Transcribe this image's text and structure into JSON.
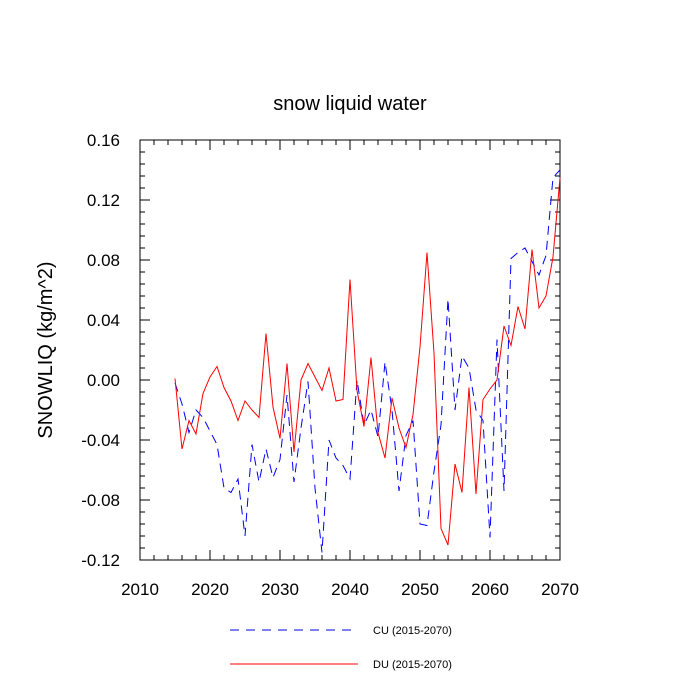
{
  "chart_data": {
    "type": "line",
    "title": "snow liquid water",
    "xlabel": "",
    "ylabel": "SNOWLIQ  (kg/m^2)",
    "xlim": [
      2010,
      2070
    ],
    "ylim": [
      -0.12,
      0.16
    ],
    "x_ticks": [
      2010,
      2020,
      2030,
      2040,
      2050,
      2060,
      2070
    ],
    "y_ticks": [
      -0.12,
      -0.08,
      -0.04,
      0.0,
      0.04,
      0.08,
      0.12,
      0.16
    ],
    "y_tick_labels": [
      "-0.12",
      "-0.08",
      "-0.04",
      "0.00",
      "0.04",
      "0.08",
      "0.12",
      "0.16"
    ],
    "x": [
      2015,
      2016,
      2017,
      2018,
      2019,
      2020,
      2021,
      2022,
      2023,
      2024,
      2025,
      2026,
      2027,
      2028,
      2029,
      2030,
      2031,
      2032,
      2033,
      2034,
      2035,
      2036,
      2037,
      2038,
      2039,
      2040,
      2041,
      2042,
      2043,
      2044,
      2045,
      2046,
      2047,
      2048,
      2049,
      2050,
      2051,
      2052,
      2053,
      2054,
      2055,
      2056,
      2057,
      2058,
      2059,
      2060,
      2061,
      2062,
      2063,
      2064,
      2065,
      2066,
      2067,
      2068,
      2069,
      2070
    ],
    "series": [
      {
        "name": "CU (2015-2070)",
        "color": "#0000ff",
        "style": "dashed",
        "values": [
          -0.002,
          -0.016,
          -0.035,
          -0.02,
          -0.025,
          -0.034,
          -0.043,
          -0.072,
          -0.075,
          -0.066,
          -0.104,
          -0.043,
          -0.068,
          -0.046,
          -0.065,
          -0.053,
          -0.01,
          -0.068,
          -0.032,
          -0.001,
          -0.072,
          -0.115,
          -0.04,
          -0.052,
          -0.057,
          -0.066,
          0.0,
          -0.03,
          -0.02,
          -0.038,
          0.012,
          -0.02,
          -0.074,
          -0.037,
          -0.027,
          -0.096,
          -0.097,
          -0.061,
          -0.03,
          0.054,
          -0.02,
          0.016,
          0.008,
          -0.02,
          -0.027,
          -0.105,
          0.027,
          -0.074,
          0.081,
          0.085,
          0.088,
          0.079,
          0.07,
          0.083,
          0.135,
          0.14
        ]
      },
      {
        "name": "DU (2015-2070)",
        "color": "#ff0000",
        "style": "solid",
        "values": [
          0.001,
          -0.046,
          -0.027,
          -0.036,
          -0.009,
          0.002,
          0.009,
          -0.005,
          -0.014,
          -0.027,
          -0.014,
          -0.02,
          -0.025,
          0.031,
          -0.018,
          -0.039,
          0.011,
          -0.048,
          0.0,
          0.011,
          0.002,
          -0.007,
          0.008,
          -0.014,
          -0.013,
          0.067,
          -0.007,
          -0.031,
          0.015,
          -0.035,
          -0.052,
          -0.012,
          -0.032,
          -0.045,
          -0.023,
          0.022,
          0.085,
          0.018,
          -0.099,
          -0.11,
          -0.056,
          -0.075,
          -0.005,
          -0.076,
          -0.013,
          -0.006,
          0.0,
          0.036,
          0.023,
          0.049,
          0.034,
          0.087,
          0.048,
          0.056,
          0.082,
          0.135
        ]
      }
    ]
  }
}
